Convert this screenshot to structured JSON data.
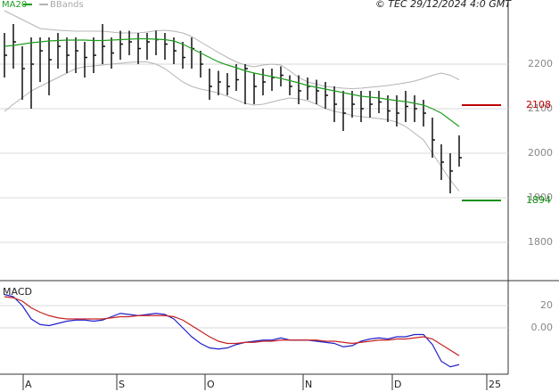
{
  "chart_data": [
    {
      "type": "ohlc",
      "attribution": "© TEC 29/12/2024 4:0 GMT",
      "x": [
        1,
        3,
        5,
        7,
        9,
        11,
        13,
        15,
        17,
        19,
        21,
        23,
        25,
        27,
        29,
        31,
        33,
        35,
        37,
        39,
        41,
        43,
        45,
        47,
        49,
        51,
        53,
        55,
        57,
        59,
        61,
        63,
        65,
        67,
        69,
        71,
        73,
        75,
        77,
        79,
        81,
        83,
        85,
        87,
        89,
        91,
        93,
        95,
        97,
        99,
        101,
        103
      ],
      "high": [
        2270,
        2290,
        2240,
        2260,
        2260,
        2260,
        2270,
        2260,
        2260,
        2250,
        2260,
        2290,
        2260,
        2275,
        2275,
        2270,
        2270,
        2275,
        2270,
        2260,
        2250,
        2260,
        2230,
        2190,
        2185,
        2180,
        2200,
        2200,
        2180,
        2190,
        2190,
        2195,
        2175,
        2175,
        2170,
        2165,
        2160,
        2150,
        2140,
        2140,
        2140,
        2140,
        2140,
        2130,
        2130,
        2140,
        2130,
        2120,
        2080,
        2020,
        2000,
        2040
      ],
      "low": [
        2170,
        2190,
        2120,
        2100,
        2160,
        2130,
        2190,
        2180,
        2180,
        2170,
        2180,
        2200,
        2190,
        2210,
        2220,
        2200,
        2210,
        2220,
        2210,
        2200,
        2190,
        2190,
        2170,
        2120,
        2130,
        2130,
        2140,
        2110,
        2110,
        2130,
        2140,
        2150,
        2130,
        2110,
        2120,
        2110,
        2100,
        2070,
        2050,
        2080,
        2070,
        2080,
        2090,
        2070,
        2060,
        2070,
        2070,
        2060,
        1990,
        1940,
        1910,
        1970
      ],
      "close": [
        2220,
        2250,
        2190,
        2200,
        2230,
        2210,
        2240,
        2220,
        2230,
        2215,
        2220,
        2240,
        2225,
        2245,
        2250,
        2235,
        2250,
        2255,
        2245,
        2230,
        2215,
        2235,
        2200,
        2150,
        2160,
        2150,
        2165,
        2190,
        2150,
        2160,
        2170,
        2175,
        2150,
        2140,
        2150,
        2140,
        2130,
        2110,
        2090,
        2110,
        2100,
        2110,
        2115,
        2095,
        2090,
        2105,
        2100,
        2090,
        2030,
        1980,
        1960,
        1990
      ],
      "series": [
        {
          "name": "MA20",
          "color": "#1f9e1f",
          "values": [
            2240,
            2242,
            2245,
            2248,
            2250,
            2252,
            2253,
            2254,
            2254,
            2254,
            2253,
            2253,
            2254,
            2255,
            2256,
            2257,
            2257,
            2256,
            2255,
            2252,
            2245,
            2235,
            2225,
            2215,
            2205,
            2198,
            2192,
            2185,
            2180,
            2176,
            2172,
            2168,
            2163,
            2158,
            2152,
            2148,
            2144,
            2140,
            2136,
            2132,
            2128,
            2126,
            2124,
            2121,
            2118,
            2116,
            2112,
            2108,
            2100,
            2090,
            2075,
            2060
          ]
        },
        {
          "name": "BBands",
          "color": "#b4b4b4",
          "upper": [
            2320,
            2310,
            2300,
            2290,
            2280,
            2278,
            2276,
            2275,
            2274,
            2274,
            2274,
            2274,
            2272,
            2270,
            2270,
            2270,
            2272,
            2275,
            2276,
            2274,
            2270,
            2262,
            2250,
            2238,
            2226,
            2215,
            2205,
            2198,
            2194,
            2198,
            2200,
            2198,
            2185,
            2170,
            2160,
            2155,
            2150,
            2148,
            2146,
            2145,
            2146,
            2148,
            2150,
            2152,
            2155,
            2158,
            2162,
            2168,
            2175,
            2180,
            2175,
            2165
          ],
          "lower": [
            2094,
            2110,
            2125,
            2140,
            2150,
            2160,
            2170,
            2180,
            2190,
            2194,
            2196,
            2198,
            2200,
            2202,
            2204,
            2205,
            2205,
            2200,
            2190,
            2175,
            2160,
            2150,
            2144,
            2140,
            2135,
            2128,
            2120,
            2112,
            2108,
            2110,
            2115,
            2120,
            2124,
            2122,
            2118,
            2110,
            2100,
            2094,
            2090,
            2085,
            2082,
            2080,
            2078,
            2075,
            2070,
            2060,
            2045,
            2030,
            2000,
            1970,
            1940,
            1915
          ]
        }
      ],
      "levels": [
        {
          "value": 2108,
          "color": "#c00000"
        },
        {
          "value": 1894,
          "color": "#109010"
        }
      ],
      "xlim": [
        0,
        114
      ],
      "ylim": [
        1714,
        2344
      ],
      "yticks": [
        2200,
        2100,
        2000,
        1900,
        1800
      ]
    },
    {
      "type": "line",
      "title": "MACD",
      "x": [
        1,
        3,
        5,
        7,
        9,
        11,
        13,
        15,
        17,
        19,
        21,
        23,
        25,
        27,
        29,
        31,
        33,
        35,
        37,
        39,
        41,
        43,
        45,
        47,
        49,
        51,
        53,
        55,
        57,
        59,
        61,
        63,
        65,
        67,
        69,
        71,
        73,
        75,
        77,
        79,
        81,
        83,
        85,
        87,
        89,
        91,
        93,
        95,
        97,
        99,
        101,
        103
      ],
      "series": [
        {
          "color": "#2020c8",
          "values": [
            30,
            28,
            20,
            8,
            3,
            2,
            4,
            6,
            7,
            7,
            6,
            7,
            10,
            13,
            12,
            11,
            12,
            13,
            12,
            8,
            0,
            -8,
            -14,
            -18,
            -19,
            -18,
            -15,
            -13,
            -12,
            -11,
            -11,
            -9,
            -11,
            -11,
            -11,
            -12,
            -13,
            -14,
            -17,
            -16,
            -12,
            -10,
            -9,
            -10,
            -8,
            -8,
            -6,
            -6,
            -15,
            -30,
            -35,
            -33
          ]
        },
        {
          "color": "#c82020",
          "values": [
            28,
            27,
            24,
            18,
            14,
            11,
            9,
            8,
            8,
            8,
            8,
            8,
            9,
            10,
            10,
            11,
            11,
            11,
            11,
            10,
            7,
            2,
            -3,
            -8,
            -12,
            -14,
            -14,
            -13,
            -13,
            -12,
            -12,
            -11,
            -11,
            -11,
            -11,
            -11,
            -12,
            -12,
            -13,
            -14,
            -13,
            -12,
            -11,
            -11,
            -10,
            -10,
            -9,
            -8,
            -10,
            -15,
            -20,
            -25
          ]
        }
      ],
      "xlim": [
        0,
        114
      ],
      "ylim": [
        -41.6,
        42.4
      ],
      "yticks": [
        20,
        {
          "value": 0,
          "label": "0.00"
        }
      ],
      "xticks": [
        {
          "value": 5.2,
          "label": "A"
        },
        {
          "value": 26.2,
          "label": "S"
        },
        {
          "value": 46,
          "label": "O"
        },
        {
          "value": 68,
          "label": "N"
        },
        {
          "value": 88,
          "label": "D"
        },
        {
          "value": 109.2,
          "label": "25"
        }
      ]
    }
  ]
}
